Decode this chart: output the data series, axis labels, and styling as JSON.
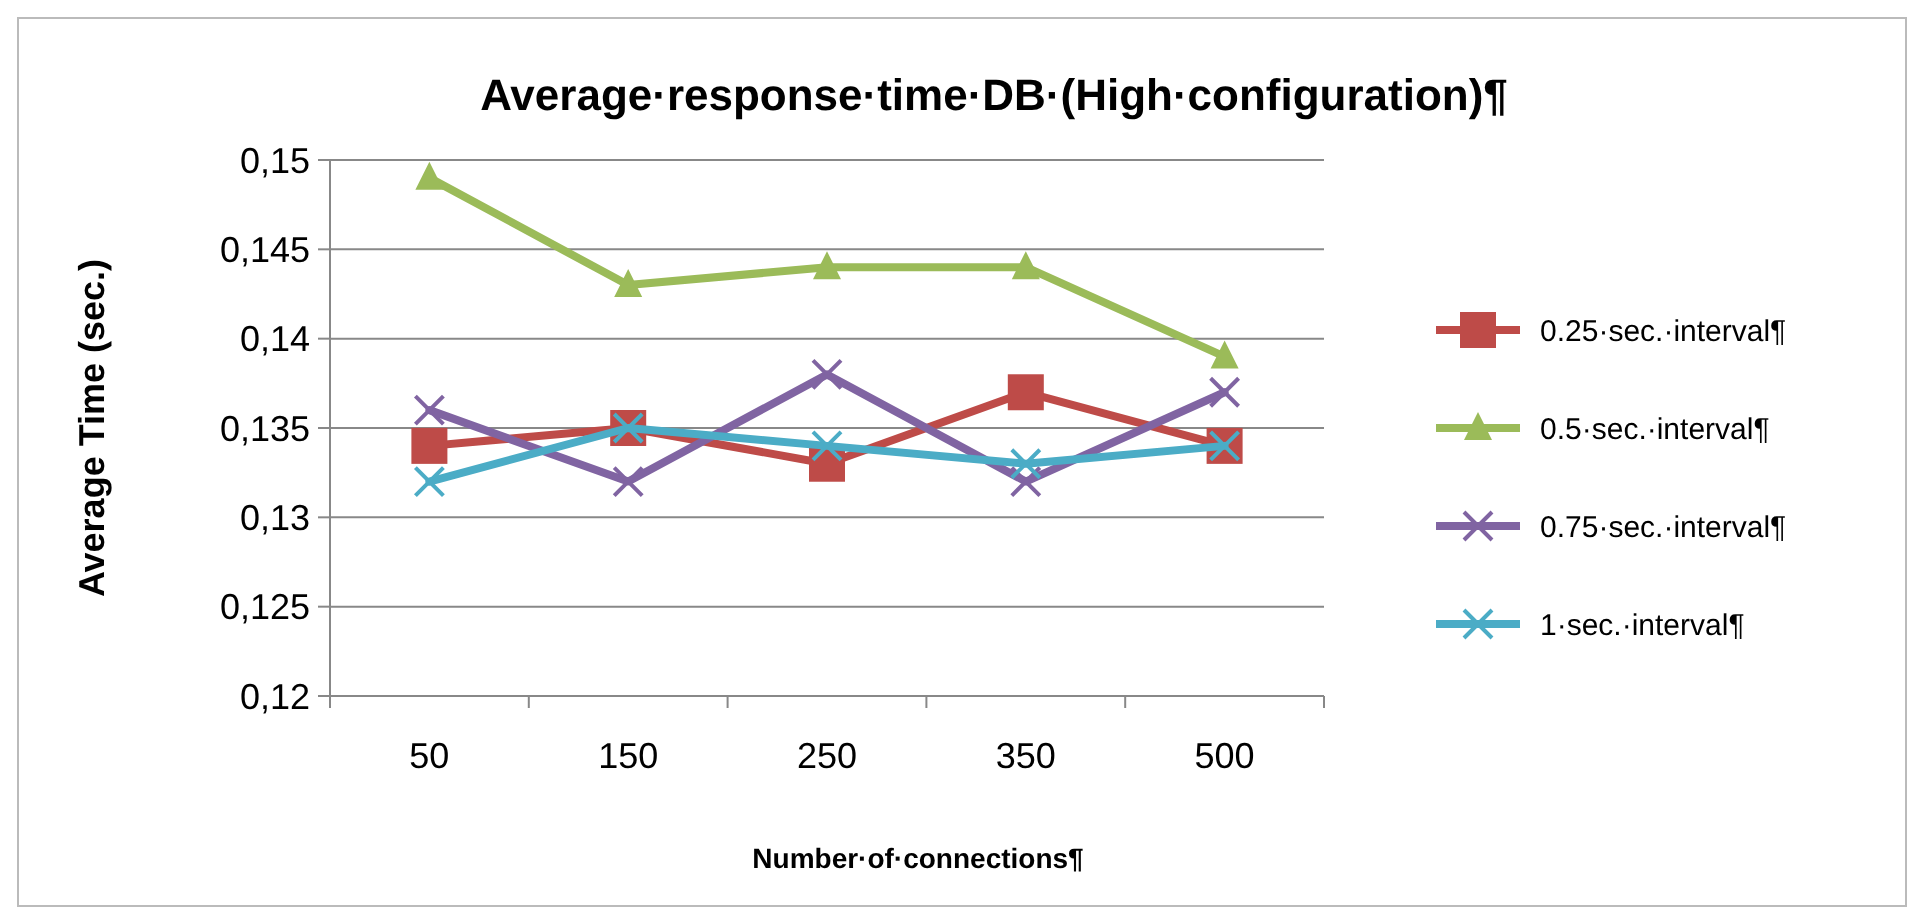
{
  "chart_data": {
    "type": "line",
    "title": "Average·response·time·DB·(High·configuration)¶",
    "xlabel": "Number·of·connections¶",
    "ylabel": "Average Time (sec.)",
    "categories": [
      "50",
      "150",
      "250",
      "350",
      "500"
    ],
    "ylim": [
      0.12,
      0.15
    ],
    "yticks": [
      {
        "value": 0.12,
        "label": "0,12"
      },
      {
        "value": 0.125,
        "label": "0,125"
      },
      {
        "value": 0.13,
        "label": "0,13"
      },
      {
        "value": 0.135,
        "label": "0,135"
      },
      {
        "value": 0.14,
        "label": "0,14"
      },
      {
        "value": 0.145,
        "label": "0,145"
      },
      {
        "value": 0.15,
        "label": "0,15"
      }
    ],
    "grid": "y",
    "legend": "right",
    "series": [
      {
        "name": "0.25·sec.·interval¶",
        "color": "#be4b48",
        "marker": "square",
        "values": [
          0.134,
          0.135,
          0.133,
          0.137,
          0.134
        ]
      },
      {
        "name": "0.5·sec.·interval¶",
        "color": "#9bbb59",
        "marker": "triangle",
        "values": [
          0.149,
          0.143,
          0.144,
          0.144,
          0.139
        ]
      },
      {
        "name": "0.75·sec.·interval¶",
        "color": "#8064a2",
        "marker": "cross",
        "values": [
          0.136,
          0.132,
          0.138,
          0.132,
          0.137
        ]
      },
      {
        "name": "1·sec.·interval¶",
        "color": "#4bacc6",
        "marker": "cross",
        "values": [
          0.132,
          0.135,
          0.134,
          0.133,
          0.134
        ]
      }
    ]
  }
}
